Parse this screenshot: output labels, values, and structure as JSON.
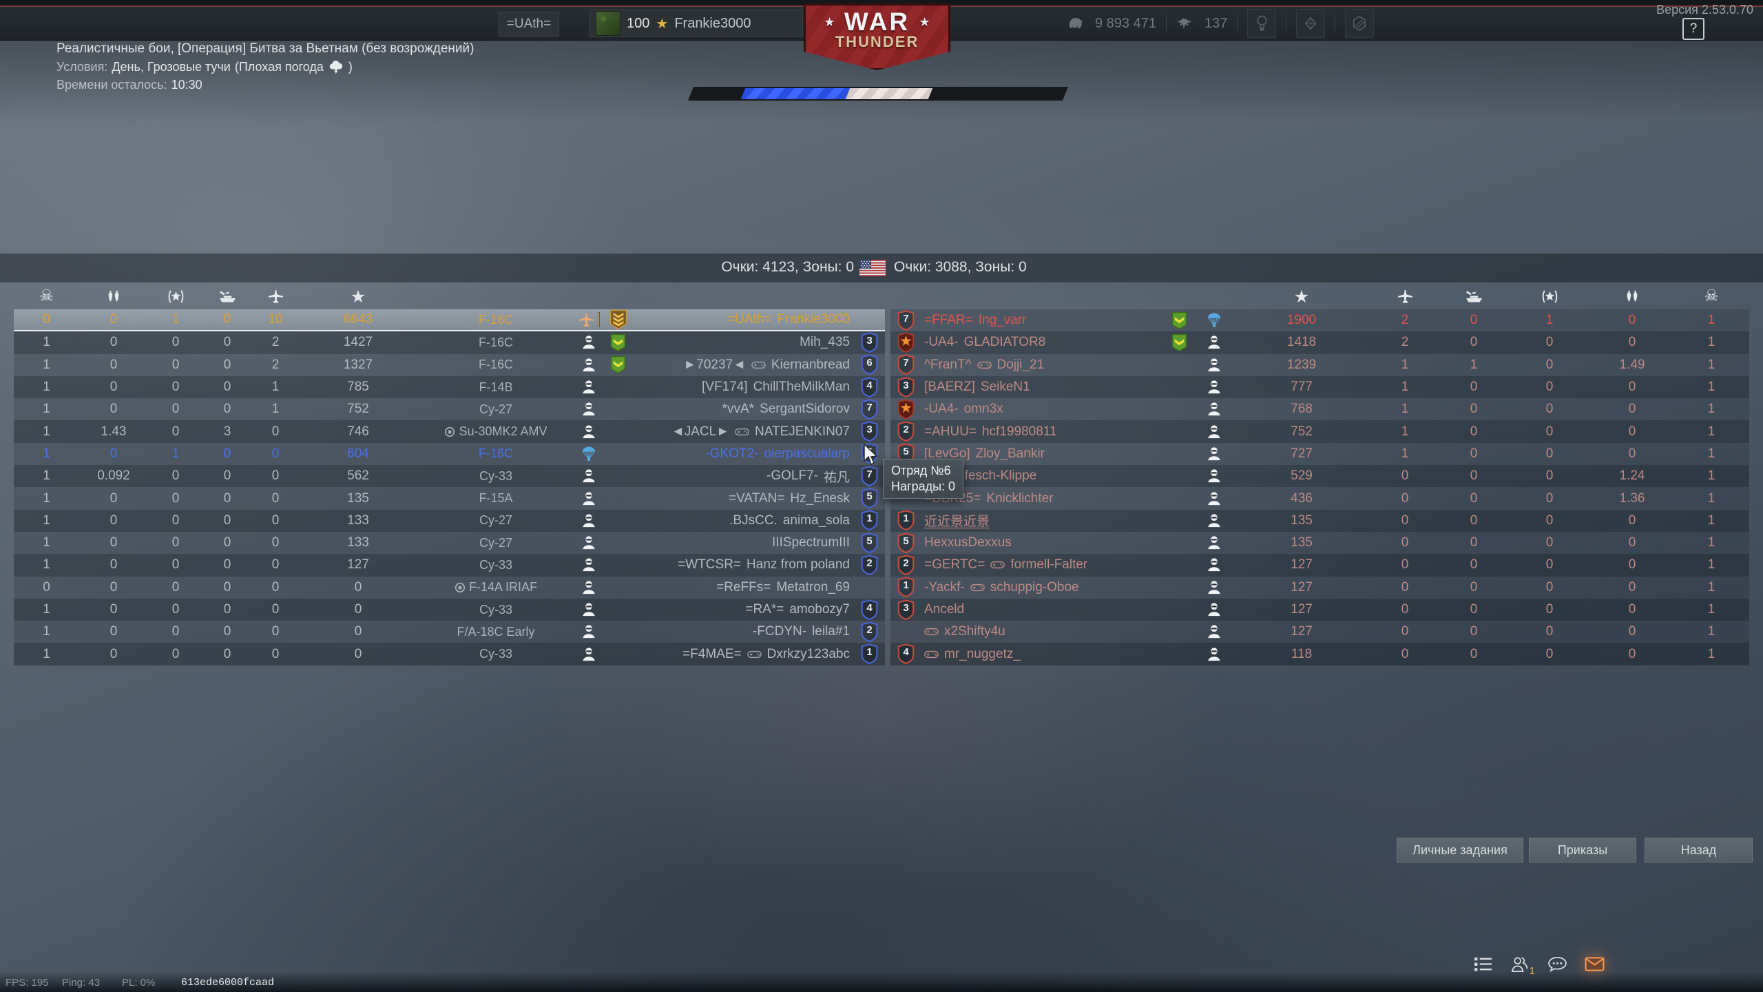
{
  "version_label": "Версия 2.53.0.70",
  "help_button": "?",
  "top_bar": {
    "clan_tag": "=UAth=",
    "player_level": "100",
    "player_name": "Frankie3000",
    "silver_lions": "9 893 471",
    "golden_eagles": "137"
  },
  "logo": {
    "war": "WAR",
    "thunder": "THUNDER",
    "star": "★"
  },
  "mission": {
    "title": "Реалистичные бои, [Операция] Битва за Вьетнам (без возрождений)",
    "conditions_label": "Условия:",
    "conditions_value": "День, Грозовые тучи",
    "conditions_paren": "(Плохая погода",
    "conditions_close": ")",
    "time_label": "Времени осталось:",
    "time_value": "10:30"
  },
  "battle_bar": {
    "blue_start_pct": 14,
    "blue_end_pct": 42,
    "white_end_pct": 64
  },
  "score_header": {
    "left": "Очки: 4123, Зоны: 0",
    "right": "Очки: 3088, Зоны: 0"
  },
  "tooltip": {
    "line1": "Отряд №6",
    "line2": "Награды: 0"
  },
  "buttons": [
    "Личные задания",
    "Приказы",
    "Назад"
  ],
  "status_bar": {
    "fps": "FPS: 195",
    "ping": "Ping: 43",
    "pl": "PL: 0%",
    "session": "613ede6000fcaad"
  },
  "colors": {
    "team_blue": "#4a66d8",
    "team_red": "#cc4a3e",
    "self_gold": "#d8a036",
    "highlight_blue": "#4a6fe4",
    "mail_glow": "#ff9e50"
  },
  "left_team": {
    "header_icons": [
      "deaths",
      "ground-kills",
      "assists",
      "naval-kills",
      "air-kills",
      "score"
    ],
    "rows": [
      {
        "stats": [
          "0",
          "0",
          "1",
          "0",
          "10",
          "6643"
        ],
        "vehicle": "F-16C",
        "premium": false,
        "status": "plane",
        "badge": "rank3",
        "tag": "=UAth=",
        "nick": "Frankie3000",
        "controller": false,
        "squad": "",
        "style": "self"
      },
      {
        "stats": [
          "1",
          "0",
          "0",
          "0",
          "2",
          "1427"
        ],
        "vehicle": "F-16C",
        "premium": false,
        "status": "pilot",
        "badge": "chevron",
        "tag": "",
        "nick": "Mih_435",
        "controller": false,
        "squad": "3",
        "style": ""
      },
      {
        "stats": [
          "1",
          "0",
          "0",
          "0",
          "2",
          "1327"
        ],
        "vehicle": "F-16C",
        "premium": false,
        "status": "pilot",
        "badge": "chevron",
        "tag": "►70237◄",
        "nick": "Kiernanbread",
        "controller": true,
        "squad": "6",
        "style": ""
      },
      {
        "stats": [
          "1",
          "0",
          "0",
          "0",
          "1",
          "785"
        ],
        "vehicle": "F-14B",
        "premium": false,
        "status": "pilot",
        "badge": "",
        "tag": "[VF174]",
        "nick": "ChillTheMilkMan",
        "controller": false,
        "squad": "4",
        "style": ""
      },
      {
        "stats": [
          "1",
          "0",
          "0",
          "0",
          "1",
          "752"
        ],
        "vehicle": "Су-27",
        "premium": false,
        "status": "pilot",
        "badge": "",
        "tag": "*vvA*",
        "nick": "SergantSidorov",
        "controller": false,
        "squad": "7",
        "style": ""
      },
      {
        "stats": [
          "1",
          "1.43",
          "0",
          "3",
          "0",
          "746"
        ],
        "vehicle": "Su-30MK2 AMV",
        "premium": true,
        "status": "pilot",
        "badge": "",
        "tag": "◄JACL►",
        "nick": "NATEJENKIN07",
        "controller": true,
        "squad": "3",
        "style": ""
      },
      {
        "stats": [
          "1",
          "0",
          "1",
          "0",
          "0",
          "604"
        ],
        "vehicle": "F-16C",
        "premium": false,
        "status": "parachute",
        "badge": "",
        "tag": "-GKOT2-",
        "nick": "oierpascualarp",
        "controller": false,
        "squad": "6",
        "style": "blue"
      },
      {
        "stats": [
          "1",
          "0.092",
          "0",
          "0",
          "0",
          "562"
        ],
        "vehicle": "Су-33",
        "premium": false,
        "status": "pilot",
        "badge": "",
        "tag": "-GOLF7-",
        "nick": "祐凡",
        "controller": false,
        "squad": "7",
        "style": ""
      },
      {
        "stats": [
          "1",
          "0",
          "0",
          "0",
          "0",
          "135"
        ],
        "vehicle": "F-15A",
        "premium": false,
        "status": "pilot",
        "badge": "",
        "tag": "=VATAN=",
        "nick": "Hz_Enesk",
        "controller": false,
        "squad": "5",
        "style": ""
      },
      {
        "stats": [
          "1",
          "0",
          "0",
          "0",
          "0",
          "133"
        ],
        "vehicle": "Су-27",
        "premium": false,
        "status": "pilot",
        "badge": "",
        "tag": ".BJsCC.",
        "nick": "anima_sola",
        "controller": false,
        "squad": "1",
        "style": ""
      },
      {
        "stats": [
          "1",
          "0",
          "0",
          "0",
          "0",
          "133"
        ],
        "vehicle": "Су-27",
        "premium": false,
        "status": "pilot",
        "badge": "",
        "tag": "",
        "nick": "IIISpectrumIII",
        "controller": false,
        "squad": "5",
        "style": ""
      },
      {
        "stats": [
          "1",
          "0",
          "0",
          "0",
          "0",
          "127"
        ],
        "vehicle": "Су-33",
        "premium": false,
        "status": "pilot",
        "badge": "",
        "tag": "=WTCSR=",
        "nick": "Hanz from poland",
        "controller": false,
        "squad": "2",
        "style": ""
      },
      {
        "stats": [
          "0",
          "0",
          "0",
          "0",
          "0",
          "0"
        ],
        "vehicle": "F-14A IRIAF",
        "premium": true,
        "status": "pilot",
        "badge": "",
        "tag": "=ReFFs=",
        "nick": "Metatron_69",
        "controller": false,
        "squad": "",
        "style": ""
      },
      {
        "stats": [
          "1",
          "0",
          "0",
          "0",
          "0",
          "0"
        ],
        "vehicle": "Су-33",
        "premium": false,
        "status": "pilot",
        "badge": "",
        "tag": "=RA*=",
        "nick": "amobozy7",
        "controller": false,
        "squad": "4",
        "style": ""
      },
      {
        "stats": [
          "1",
          "0",
          "0",
          "0",
          "0",
          "0"
        ],
        "vehicle": "F/A-18C Early",
        "premium": false,
        "status": "pilot",
        "badge": "",
        "tag": "-FCDYN-",
        "nick": "leila#1",
        "controller": false,
        "squad": "2",
        "style": ""
      },
      {
        "stats": [
          "1",
          "0",
          "0",
          "0",
          "0",
          "0"
        ],
        "vehicle": "Су-33",
        "premium": false,
        "status": "pilot",
        "badge": "",
        "tag": "=F4MAE=",
        "nick": "Dxrkzy123abc",
        "controller": true,
        "squad": "1",
        "style": ""
      }
    ]
  },
  "right_team": {
    "header_icons": [
      "score",
      "air-kills",
      "naval-kills",
      "assists",
      "ground-kills",
      "deaths"
    ],
    "rows": [
      {
        "stats": [
          "1900",
          "2",
          "0",
          "1",
          "0",
          "1"
        ],
        "status": "parachute",
        "badge": "chevron",
        "tag": "=FFAR=",
        "nick": "Ing_varr",
        "controller": false,
        "squad": "7",
        "style": "first"
      },
      {
        "stats": [
          "1418",
          "2",
          "0",
          "0",
          "0",
          "1"
        ],
        "status": "pilot",
        "badge": "chevron",
        "tag": "-UA4-",
        "nick": "GLADIATOR8",
        "controller": false,
        "squad": "star",
        "style": ""
      },
      {
        "stats": [
          "1239",
          "1",
          "1",
          "0",
          "1.49",
          "1"
        ],
        "status": "pilot",
        "badge": "",
        "tag": "^FranT^",
        "nick": "Dojji_21",
        "controller": true,
        "squad": "7",
        "style": ""
      },
      {
        "stats": [
          "777",
          "1",
          "0",
          "0",
          "0",
          "1"
        ],
        "status": "pilot",
        "badge": "",
        "tag": "[BAERZ]",
        "nick": "SeikeN1",
        "controller": false,
        "squad": "3",
        "style": ""
      },
      {
        "stats": [
          "768",
          "1",
          "0",
          "0",
          "0",
          "1"
        ],
        "status": "pilot",
        "badge": "",
        "tag": "-UA4-",
        "nick": "omn3x",
        "controller": false,
        "squad": "star",
        "style": ""
      },
      {
        "stats": [
          "752",
          "1",
          "0",
          "0",
          "0",
          "1"
        ],
        "status": "pilot",
        "badge": "",
        "tag": "=AHUU=",
        "nick": "hcf19980811",
        "controller": false,
        "squad": "2",
        "style": ""
      },
      {
        "stats": [
          "727",
          "1",
          "0",
          "0",
          "0",
          "1"
        ],
        "status": "pilot",
        "badge": "",
        "tag": "[LevGo]",
        "nick": "Zloy_Bankir",
        "controller": false,
        "squad": "5",
        "style": ""
      },
      {
        "stats": [
          "529",
          "0",
          "0",
          "0",
          "1.24",
          "1"
        ],
        "status": "pilot",
        "badge": "",
        "tag": "0=",
        "nick": "fesch-Klippe",
        "controller": true,
        "squad": "",
        "style": ""
      },
      {
        "stats": [
          "436",
          "0",
          "0",
          "0",
          "1.36",
          "1"
        ],
        "status": "pilot",
        "badge": "",
        "tag": "=DBK25=",
        "nick": "Knicklichter",
        "controller": false,
        "squad": "",
        "style": ""
      },
      {
        "stats": [
          "135",
          "0",
          "0",
          "0",
          "0",
          "1"
        ],
        "status": "pilot",
        "badge": "",
        "tag": "",
        "nick": "近近景近景",
        "controller": false,
        "underline": true,
        "squad": "1",
        "style": ""
      },
      {
        "stats": [
          "135",
          "0",
          "0",
          "0",
          "0",
          "1"
        ],
        "status": "pilot",
        "badge": "",
        "tag": "",
        "nick": "HexxusDexxus",
        "controller": false,
        "squad": "5",
        "style": ""
      },
      {
        "stats": [
          "127",
          "0",
          "0",
          "0",
          "0",
          "1"
        ],
        "status": "pilot",
        "badge": "",
        "tag": "=GERTC=",
        "nick": "formell-Falter",
        "controller": true,
        "squad": "2",
        "style": ""
      },
      {
        "stats": [
          "127",
          "0",
          "0",
          "0",
          "0",
          "1"
        ],
        "status": "pilot",
        "badge": "",
        "tag": "-Yackf-",
        "nick": "schuppig-Oboe",
        "controller": true,
        "squad": "1",
        "style": ""
      },
      {
        "stats": [
          "127",
          "0",
          "0",
          "0",
          "0",
          "1"
        ],
        "status": "pilot",
        "badge": "",
        "tag": "",
        "nick": "Anceld",
        "controller": false,
        "squad": "3",
        "style": ""
      },
      {
        "stats": [
          "127",
          "0",
          "0",
          "0",
          "0",
          "1"
        ],
        "status": "pilot",
        "badge": "",
        "tag": "",
        "nick": "x2Shifty4u",
        "controller": true,
        "squad": "",
        "style": ""
      },
      {
        "stats": [
          "118",
          "0",
          "0",
          "0",
          "0",
          "1"
        ],
        "status": "pilot",
        "badge": "",
        "tag": "",
        "nick": "mr_nuggetz_",
        "controller": true,
        "squad": "4",
        "style": ""
      }
    ]
  }
}
